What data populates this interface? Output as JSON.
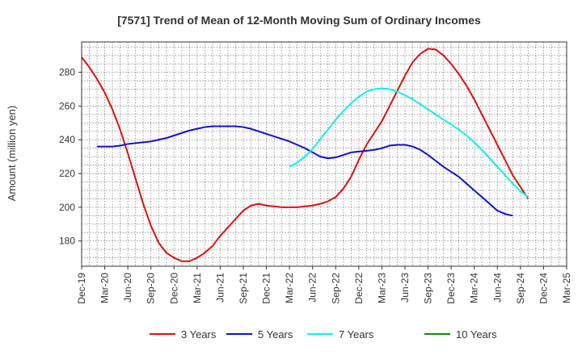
{
  "chart_data": {
    "type": "line",
    "title": "[7571]  Trend of Mean of 12-Month Moving Sum of Ordinary Incomes",
    "xlabel": "",
    "ylabel": "Amount (million yen)",
    "ylim": [
      165,
      298
    ],
    "yticks": [
      180,
      200,
      220,
      240,
      260,
      280
    ],
    "x_categories": [
      "Dec-19",
      "Mar-20",
      "Jun-20",
      "Sep-20",
      "Dec-20",
      "Mar-21",
      "Jun-21",
      "Sep-21",
      "Dec-21",
      "Mar-22",
      "Jun-22",
      "Sep-22",
      "Dec-22",
      "Mar-23",
      "Jun-23",
      "Sep-23",
      "Dec-23",
      "Mar-24",
      "Jun-24",
      "Sep-24",
      "Dec-24",
      "Mar-25"
    ],
    "grid": true,
    "legend_position": "bottom",
    "series": [
      {
        "name": "3 Years",
        "color": "#dd1111",
        "start_index": 0,
        "values": [
          289,
          283,
          276,
          268,
          258,
          246,
          232,
          217,
          202,
          189,
          179,
          173,
          170,
          168,
          168,
          170,
          173,
          177,
          183,
          188,
          193,
          198,
          201,
          202,
          201,
          200.5,
          200,
          200,
          200,
          200.5,
          201,
          202,
          203.5,
          206,
          211,
          218,
          228,
          237,
          244,
          251,
          260,
          269,
          278,
          286,
          291,
          294,
          293.5,
          290,
          285,
          279,
          272,
          264,
          255,
          246,
          237,
          228,
          219,
          212,
          205
        ]
      },
      {
        "name": "5 Years",
        "color": "#1111cc",
        "start_index": 2,
        "values": [
          236,
          236,
          236,
          236.5,
          237.5,
          238,
          238.5,
          239,
          240,
          241,
          242.5,
          244,
          245.5,
          246.5,
          247.5,
          248,
          248,
          248,
          248,
          247.5,
          246.5,
          245,
          243.5,
          242,
          240.5,
          239,
          237,
          235,
          232.5,
          230,
          229,
          229.5,
          231,
          232.5,
          233,
          233.5,
          234,
          235,
          236.5,
          237,
          237,
          236,
          234,
          231,
          227.5,
          224,
          221,
          218,
          214,
          210,
          206,
          202,
          198,
          196,
          195
        ]
      },
      {
        "name": "7 Years",
        "color": "#11eeee",
        "start_index": 27,
        "values": [
          224,
          226.5,
          230,
          234.5,
          240.5,
          246,
          252,
          257,
          261.5,
          265.5,
          268.5,
          270,
          270.5,
          270,
          268.5,
          266.5,
          264,
          261,
          258,
          255,
          252,
          249,
          246,
          242.5,
          238.5,
          234,
          229,
          224,
          219,
          214,
          209.5,
          206
        ]
      },
      {
        "name": "10 Years",
        "color": "#118811",
        "start_index": 0,
        "values": []
      }
    ]
  }
}
